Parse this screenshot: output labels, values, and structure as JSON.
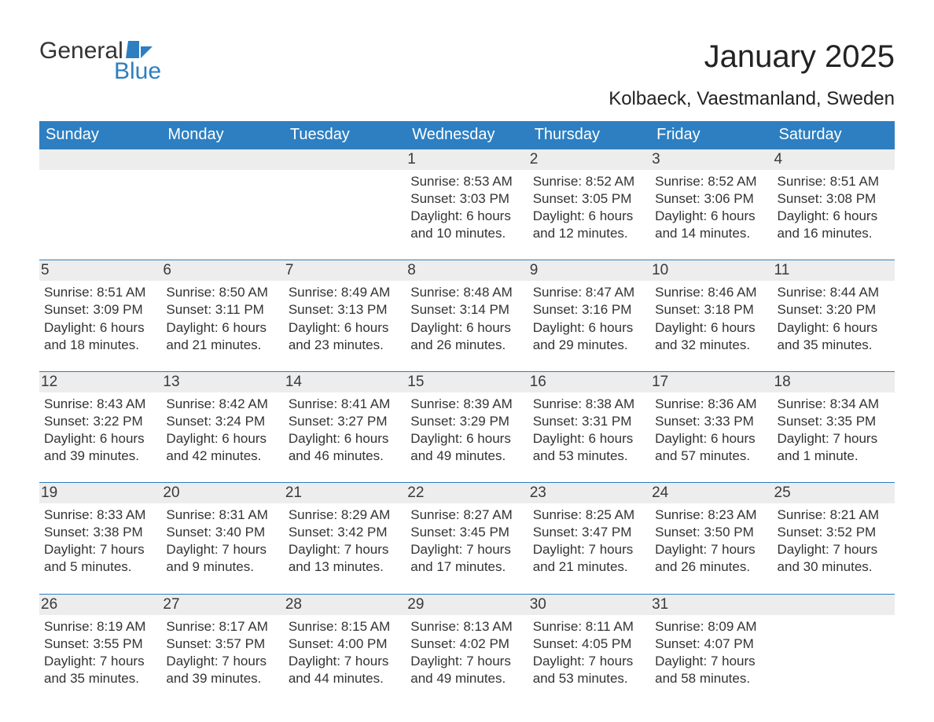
{
  "logo": {
    "text_general": "General",
    "text_blue": "Blue"
  },
  "title": "January 2025",
  "location": "Kolbaeck, Vaestmanland, Sweden",
  "day_headers": [
    "Sunday",
    "Monday",
    "Tuesday",
    "Wednesday",
    "Thursday",
    "Friday",
    "Saturday"
  ],
  "colors": {
    "header_bg": "#2d7fc1",
    "header_text": "#ffffff",
    "daynum_bg": "#ededed",
    "border": "#2d7fc1",
    "text": "#333333",
    "page_bg": "#ffffff"
  },
  "fonts": {
    "title_size": 40,
    "location_size": 24,
    "header_size": 20,
    "daynum_size": 19,
    "info_size": 17
  },
  "weeks": [
    [
      null,
      null,
      null,
      {
        "n": "1",
        "sunrise": "Sunrise: 8:53 AM",
        "sunset": "Sunset: 3:03 PM",
        "d1": "Daylight: 6 hours",
        "d2": "and 10 minutes."
      },
      {
        "n": "2",
        "sunrise": "Sunrise: 8:52 AM",
        "sunset": "Sunset: 3:05 PM",
        "d1": "Daylight: 6 hours",
        "d2": "and 12 minutes."
      },
      {
        "n": "3",
        "sunrise": "Sunrise: 8:52 AM",
        "sunset": "Sunset: 3:06 PM",
        "d1": "Daylight: 6 hours",
        "d2": "and 14 minutes."
      },
      {
        "n": "4",
        "sunrise": "Sunrise: 8:51 AM",
        "sunset": "Sunset: 3:08 PM",
        "d1": "Daylight: 6 hours",
        "d2": "and 16 minutes."
      }
    ],
    [
      {
        "n": "5",
        "sunrise": "Sunrise: 8:51 AM",
        "sunset": "Sunset: 3:09 PM",
        "d1": "Daylight: 6 hours",
        "d2": "and 18 minutes."
      },
      {
        "n": "6",
        "sunrise": "Sunrise: 8:50 AM",
        "sunset": "Sunset: 3:11 PM",
        "d1": "Daylight: 6 hours",
        "d2": "and 21 minutes."
      },
      {
        "n": "7",
        "sunrise": "Sunrise: 8:49 AM",
        "sunset": "Sunset: 3:13 PM",
        "d1": "Daylight: 6 hours",
        "d2": "and 23 minutes."
      },
      {
        "n": "8",
        "sunrise": "Sunrise: 8:48 AM",
        "sunset": "Sunset: 3:14 PM",
        "d1": "Daylight: 6 hours",
        "d2": "and 26 minutes."
      },
      {
        "n": "9",
        "sunrise": "Sunrise: 8:47 AM",
        "sunset": "Sunset: 3:16 PM",
        "d1": "Daylight: 6 hours",
        "d2": "and 29 minutes."
      },
      {
        "n": "10",
        "sunrise": "Sunrise: 8:46 AM",
        "sunset": "Sunset: 3:18 PM",
        "d1": "Daylight: 6 hours",
        "d2": "and 32 minutes."
      },
      {
        "n": "11",
        "sunrise": "Sunrise: 8:44 AM",
        "sunset": "Sunset: 3:20 PM",
        "d1": "Daylight: 6 hours",
        "d2": "and 35 minutes."
      }
    ],
    [
      {
        "n": "12",
        "sunrise": "Sunrise: 8:43 AM",
        "sunset": "Sunset: 3:22 PM",
        "d1": "Daylight: 6 hours",
        "d2": "and 39 minutes."
      },
      {
        "n": "13",
        "sunrise": "Sunrise: 8:42 AM",
        "sunset": "Sunset: 3:24 PM",
        "d1": "Daylight: 6 hours",
        "d2": "and 42 minutes."
      },
      {
        "n": "14",
        "sunrise": "Sunrise: 8:41 AM",
        "sunset": "Sunset: 3:27 PM",
        "d1": "Daylight: 6 hours",
        "d2": "and 46 minutes."
      },
      {
        "n": "15",
        "sunrise": "Sunrise: 8:39 AM",
        "sunset": "Sunset: 3:29 PM",
        "d1": "Daylight: 6 hours",
        "d2": "and 49 minutes."
      },
      {
        "n": "16",
        "sunrise": "Sunrise: 8:38 AM",
        "sunset": "Sunset: 3:31 PM",
        "d1": "Daylight: 6 hours",
        "d2": "and 53 minutes."
      },
      {
        "n": "17",
        "sunrise": "Sunrise: 8:36 AM",
        "sunset": "Sunset: 3:33 PM",
        "d1": "Daylight: 6 hours",
        "d2": "and 57 minutes."
      },
      {
        "n": "18",
        "sunrise": "Sunrise: 8:34 AM",
        "sunset": "Sunset: 3:35 PM",
        "d1": "Daylight: 7 hours",
        "d2": "and 1 minute."
      }
    ],
    [
      {
        "n": "19",
        "sunrise": "Sunrise: 8:33 AM",
        "sunset": "Sunset: 3:38 PM",
        "d1": "Daylight: 7 hours",
        "d2": "and 5 minutes."
      },
      {
        "n": "20",
        "sunrise": "Sunrise: 8:31 AM",
        "sunset": "Sunset: 3:40 PM",
        "d1": "Daylight: 7 hours",
        "d2": "and 9 minutes."
      },
      {
        "n": "21",
        "sunrise": "Sunrise: 8:29 AM",
        "sunset": "Sunset: 3:42 PM",
        "d1": "Daylight: 7 hours",
        "d2": "and 13 minutes."
      },
      {
        "n": "22",
        "sunrise": "Sunrise: 8:27 AM",
        "sunset": "Sunset: 3:45 PM",
        "d1": "Daylight: 7 hours",
        "d2": "and 17 minutes."
      },
      {
        "n": "23",
        "sunrise": "Sunrise: 8:25 AM",
        "sunset": "Sunset: 3:47 PM",
        "d1": "Daylight: 7 hours",
        "d2": "and 21 minutes."
      },
      {
        "n": "24",
        "sunrise": "Sunrise: 8:23 AM",
        "sunset": "Sunset: 3:50 PM",
        "d1": "Daylight: 7 hours",
        "d2": "and 26 minutes."
      },
      {
        "n": "25",
        "sunrise": "Sunrise: 8:21 AM",
        "sunset": "Sunset: 3:52 PM",
        "d1": "Daylight: 7 hours",
        "d2": "and 30 minutes."
      }
    ],
    [
      {
        "n": "26",
        "sunrise": "Sunrise: 8:19 AM",
        "sunset": "Sunset: 3:55 PM",
        "d1": "Daylight: 7 hours",
        "d2": "and 35 minutes."
      },
      {
        "n": "27",
        "sunrise": "Sunrise: 8:17 AM",
        "sunset": "Sunset: 3:57 PM",
        "d1": "Daylight: 7 hours",
        "d2": "and 39 minutes."
      },
      {
        "n": "28",
        "sunrise": "Sunrise: 8:15 AM",
        "sunset": "Sunset: 4:00 PM",
        "d1": "Daylight: 7 hours",
        "d2": "and 44 minutes."
      },
      {
        "n": "29",
        "sunrise": "Sunrise: 8:13 AM",
        "sunset": "Sunset: 4:02 PM",
        "d1": "Daylight: 7 hours",
        "d2": "and 49 minutes."
      },
      {
        "n": "30",
        "sunrise": "Sunrise: 8:11 AM",
        "sunset": "Sunset: 4:05 PM",
        "d1": "Daylight: 7 hours",
        "d2": "and 53 minutes."
      },
      {
        "n": "31",
        "sunrise": "Sunrise: 8:09 AM",
        "sunset": "Sunset: 4:07 PM",
        "d1": "Daylight: 7 hours",
        "d2": "and 58 minutes."
      },
      null
    ]
  ]
}
